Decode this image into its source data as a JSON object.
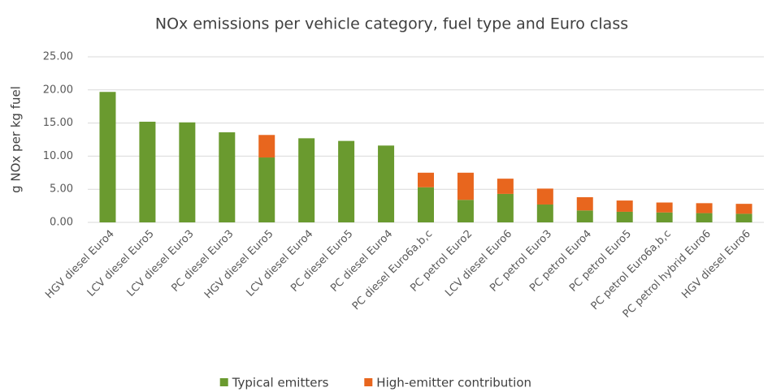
{
  "chart_data": {
    "type": "bar",
    "stacked": true,
    "title": "NOx emissions per vehicle category, fuel type and Euro class",
    "y_label": "g NOx per kg fuel",
    "categories": [
      "HGV diesel Euro4",
      "LCV diesel Euro5",
      "LCV diesel Euro3",
      "PC diesel Euro3",
      "HGV diesel Euro5",
      "LCV diesel Euro4",
      "PC diesel Euro5",
      "PC diesel Euro4",
      "PC diesel Euro6a,b,c",
      "PC petrol Euro2",
      "LCV diesel Euro6",
      "PC petrol Euro3",
      "PC petrol Euro4",
      "PC petrol Euro5",
      "PC petrol Euro6a,b,c",
      "PC petrol hybrid Euro6",
      "HGV diesel Euro6"
    ],
    "series": [
      {
        "name": "Typical emitters",
        "color": "#6a9a2f",
        "values": [
          19.7,
          15.2,
          15.1,
          13.6,
          9.8,
          12.7,
          12.3,
          11.6,
          5.3,
          3.4,
          4.3,
          2.7,
          1.8,
          1.6,
          1.5,
          1.4,
          1.3
        ]
      },
      {
        "name": "High-emitter contribution",
        "color": "#e8661e",
        "values": [
          0,
          0,
          0,
          0,
          3.4,
          0,
          0,
          0,
          2.2,
          4.1,
          2.3,
          2.4,
          2.0,
          1.7,
          1.5,
          1.5,
          1.5
        ]
      }
    ],
    "ylim": [
      0,
      25
    ],
    "yticks": [
      {
        "value": 0,
        "label": "0.00"
      },
      {
        "value": 5,
        "label": "5.00"
      },
      {
        "value": 10,
        "label": "10.00"
      },
      {
        "value": 15,
        "label": "15.00"
      },
      {
        "value": 20,
        "label": "20.00"
      },
      {
        "value": 25,
        "label": "25.00"
      }
    ],
    "grid": true,
    "legend": "bottom"
  }
}
